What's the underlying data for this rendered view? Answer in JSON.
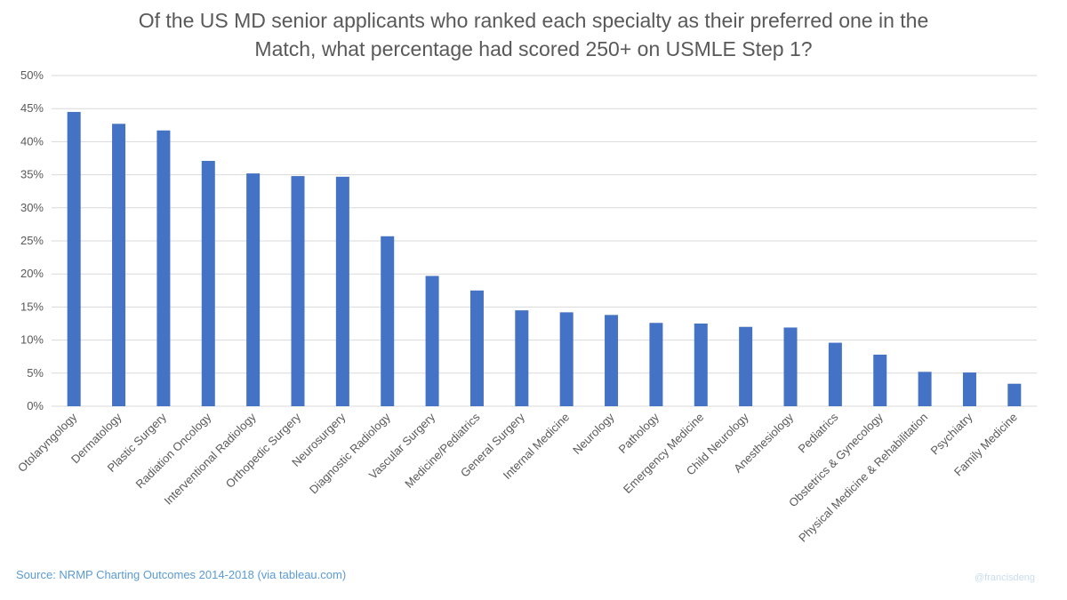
{
  "chart_data": {
    "type": "bar",
    "title_lines": [
      "Of the US MD senior applicants who ranked each specialty as their preferred one in the",
      "Match, what percentage had scored 250+ on USMLE Step 1?"
    ],
    "categories": [
      "Otolaryngology",
      "Dermatology",
      "Plastic Surgery",
      "Radiation Oncology",
      "Interventional Radiology",
      "Orthopedic Surgery",
      "Neurosurgery",
      "Diagnostic Radiology",
      "Vascular Surgery",
      "Medicine/Pediatrics",
      "General Surgery",
      "Internal Medicine",
      "Neurology",
      "Pathology",
      "Emergency Medicine",
      "Child Neurology",
      "Anesthesiology",
      "Pediatrics",
      "Obstetrics & Gynecology",
      "Physical Medicine & Rehabilitation",
      "Psychiatry",
      "Family Medicine"
    ],
    "values": [
      44.5,
      42.7,
      41.7,
      37.1,
      35.2,
      34.8,
      34.7,
      25.7,
      19.7,
      17.5,
      14.5,
      14.2,
      13.8,
      12.6,
      12.5,
      12.0,
      11.9,
      9.6,
      7.8,
      5.2,
      5.1,
      3.4
    ],
    "ylim": [
      0,
      50
    ],
    "yticks": [
      0,
      5,
      10,
      15,
      20,
      25,
      30,
      35,
      40,
      45,
      50
    ],
    "ytick_labels": [
      "0%",
      "5%",
      "10%",
      "15%",
      "20%",
      "25%",
      "30%",
      "35%",
      "40%",
      "45%",
      "50%"
    ],
    "grid": true,
    "xlabel": "",
    "ylabel": ""
  },
  "colors": {
    "bar": "#4472c4",
    "grid": "#d9d9d9",
    "title": "#595959",
    "tick_label": "#595959",
    "source": "#5b9bd5",
    "watermark": "#c9dced"
  },
  "footer": {
    "source": "Source: NRMP Charting Outcomes 2014-2018 (via tableau.com)",
    "watermark": "@francisdeng"
  }
}
